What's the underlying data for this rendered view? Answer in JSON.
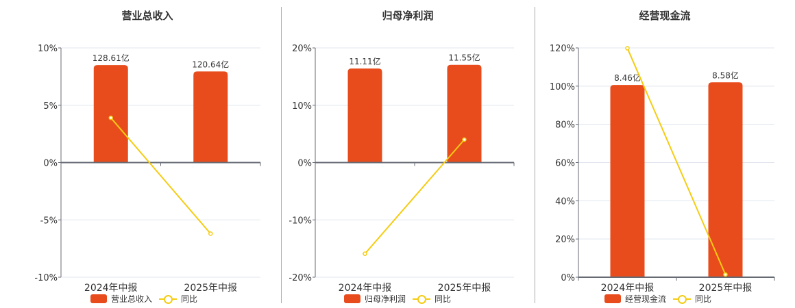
{
  "colors": {
    "bar": "#e84c1c",
    "line": "#f5cc12",
    "grid": "#dfe5ee",
    "axis": "#666a73",
    "text": "#333333"
  },
  "chart_data": [
    {
      "type": "bar",
      "title": "营业总收入",
      "categories": [
        "2024年中报",
        "2025年中报"
      ],
      "series": [
        {
          "name": "营业总收入",
          "type": "bar",
          "labels": [
            "128.61亿",
            "120.64亿"
          ],
          "values_yi": [
            128.61,
            120.64
          ],
          "bar_height_pct": [
            8.5,
            7.95
          ]
        },
        {
          "name": "同比",
          "type": "line",
          "values": [
            3.9,
            -6.2
          ]
        }
      ],
      "ylim": [
        -10,
        10
      ],
      "yticks": [
        "10%",
        "5%",
        "0%",
        "-5%",
        "-10%"
      ],
      "ytick_values": [
        10,
        5,
        0,
        -5,
        -10
      ],
      "legend": [
        "营业总收入",
        "同比"
      ],
      "legend_position": "bottom",
      "grid": true
    },
    {
      "type": "bar",
      "title": "归母净利润",
      "categories": [
        "2024年中报",
        "2025年中报"
      ],
      "series": [
        {
          "name": "归母净利润",
          "type": "bar",
          "labels": [
            "11.11亿",
            "11.55亿"
          ],
          "values_yi": [
            11.11,
            11.55
          ],
          "bar_height_pct": [
            16.4,
            17.05
          ]
        },
        {
          "name": "同比",
          "type": "line",
          "values": [
            -15.9,
            4.0
          ]
        }
      ],
      "ylim": [
        -20,
        20
      ],
      "yticks": [
        "20%",
        "10%",
        "0%",
        "-10%",
        "-20%"
      ],
      "ytick_values": [
        20,
        10,
        0,
        -10,
        -20
      ],
      "legend": [
        "归母净利润",
        "同比"
      ],
      "legend_position": "bottom",
      "grid": true
    },
    {
      "type": "bar",
      "title": "经营现金流",
      "categories": [
        "2024年中报",
        "2025年中报"
      ],
      "series": [
        {
          "name": "经营现金流",
          "type": "bar",
          "labels": [
            "8.46亿",
            "8.58亿"
          ],
          "values_yi": [
            8.46,
            8.58
          ],
          "bar_height_pct": [
            100.6,
            102.0
          ]
        },
        {
          "name": "同比",
          "type": "line",
          "values": [
            119.8,
            1.4
          ]
        }
      ],
      "ylim": [
        0,
        120
      ],
      "yticks": [
        "120%",
        "100%",
        "80%",
        "60%",
        "40%",
        "20%",
        "0%"
      ],
      "ytick_values": [
        120,
        100,
        80,
        60,
        40,
        20,
        0
      ],
      "legend": [
        "经营现金流",
        "同比"
      ],
      "legend_position": "bottom",
      "grid": true
    }
  ],
  "panels": [
    {
      "title": "营业总收入",
      "legend_bar": "营业总收入",
      "legend_line": "同比"
    },
    {
      "title": "归母净利润",
      "legend_bar": "归母净利润",
      "legend_line": "同比"
    },
    {
      "title": "经营现金流",
      "legend_bar": "经营现金流",
      "legend_line": "同比"
    }
  ]
}
